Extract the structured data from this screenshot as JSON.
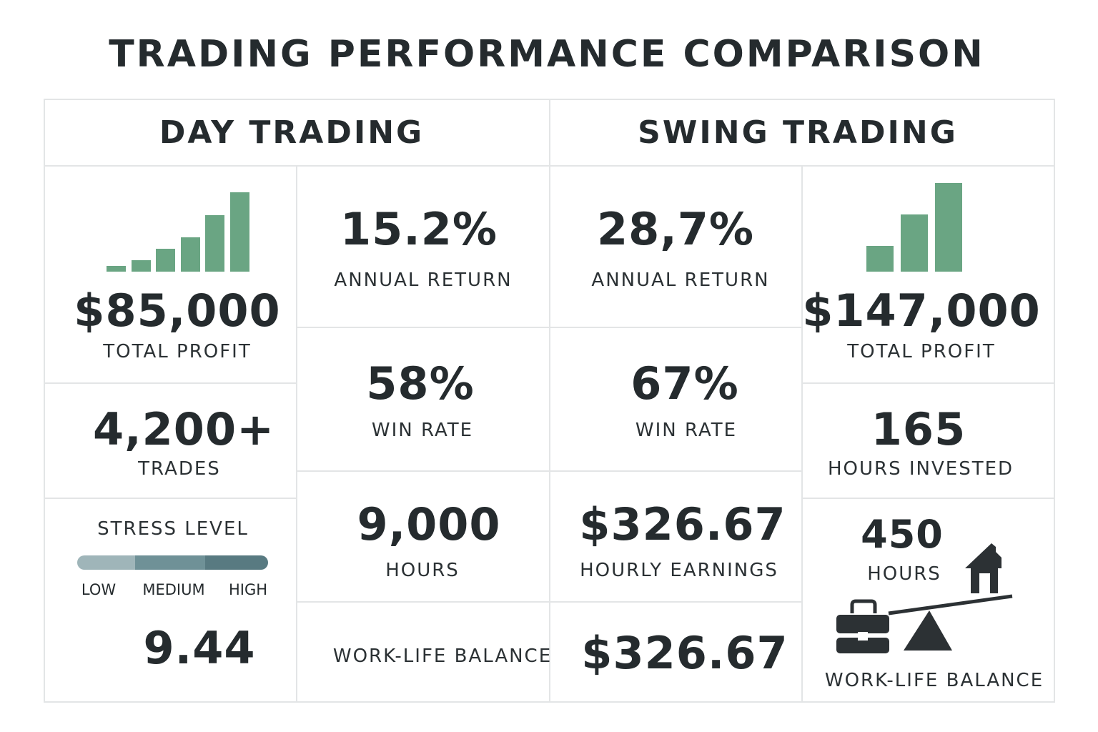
{
  "title": "TRADING PERFORMANCE COMPARISON",
  "colors": {
    "bar": "#6aa583",
    "text": "#252b2e",
    "stress_low": "#9fb5b9",
    "stress_medium": "#6f9197",
    "stress_high": "#587a81"
  },
  "day": {
    "header": "DAY TRADING",
    "bar_chart_values": [
      1,
      2,
      4,
      6,
      10,
      14
    ],
    "total_profit": "$85,000",
    "total_profit_label": "TOTAL PROFIT",
    "annual_return": "15.2%",
    "annual_return_label": "ANNUAL RETURN",
    "trades": "4,200+",
    "trades_label": "TRADES",
    "win_rate": "58%",
    "win_rate_label": "WIN RATE",
    "stress_label": "STRESS LEVEL",
    "stress_levels": [
      "LOW",
      "MEDIUM",
      "HIGH"
    ],
    "stress_score": "9.44",
    "hours": "9,000",
    "hours_label": "HOURS",
    "work_life_label": "WORK-LIFE BALANCE"
  },
  "swing": {
    "header": "SWING TRADING",
    "bar_chart_values": [
      1,
      2.2,
      3.4
    ],
    "annual_return": "28,7%",
    "annual_return_label": "ANNUAL RETURN",
    "total_profit": "$147,000",
    "total_profit_label": "TOTAL PROFIT",
    "win_rate": "67%",
    "win_rate_label": "WIN RATE",
    "hours_invested": "165",
    "hours_invested_label": "HOURS INVESTED",
    "hourly": "$326.67",
    "hourly_label": "HOURLY EARNINGS",
    "hourly_repeat": "$326.67",
    "hours": "450",
    "hours_label": "HOURS",
    "work_life_label": "WORK-LIFE BALANCE"
  }
}
